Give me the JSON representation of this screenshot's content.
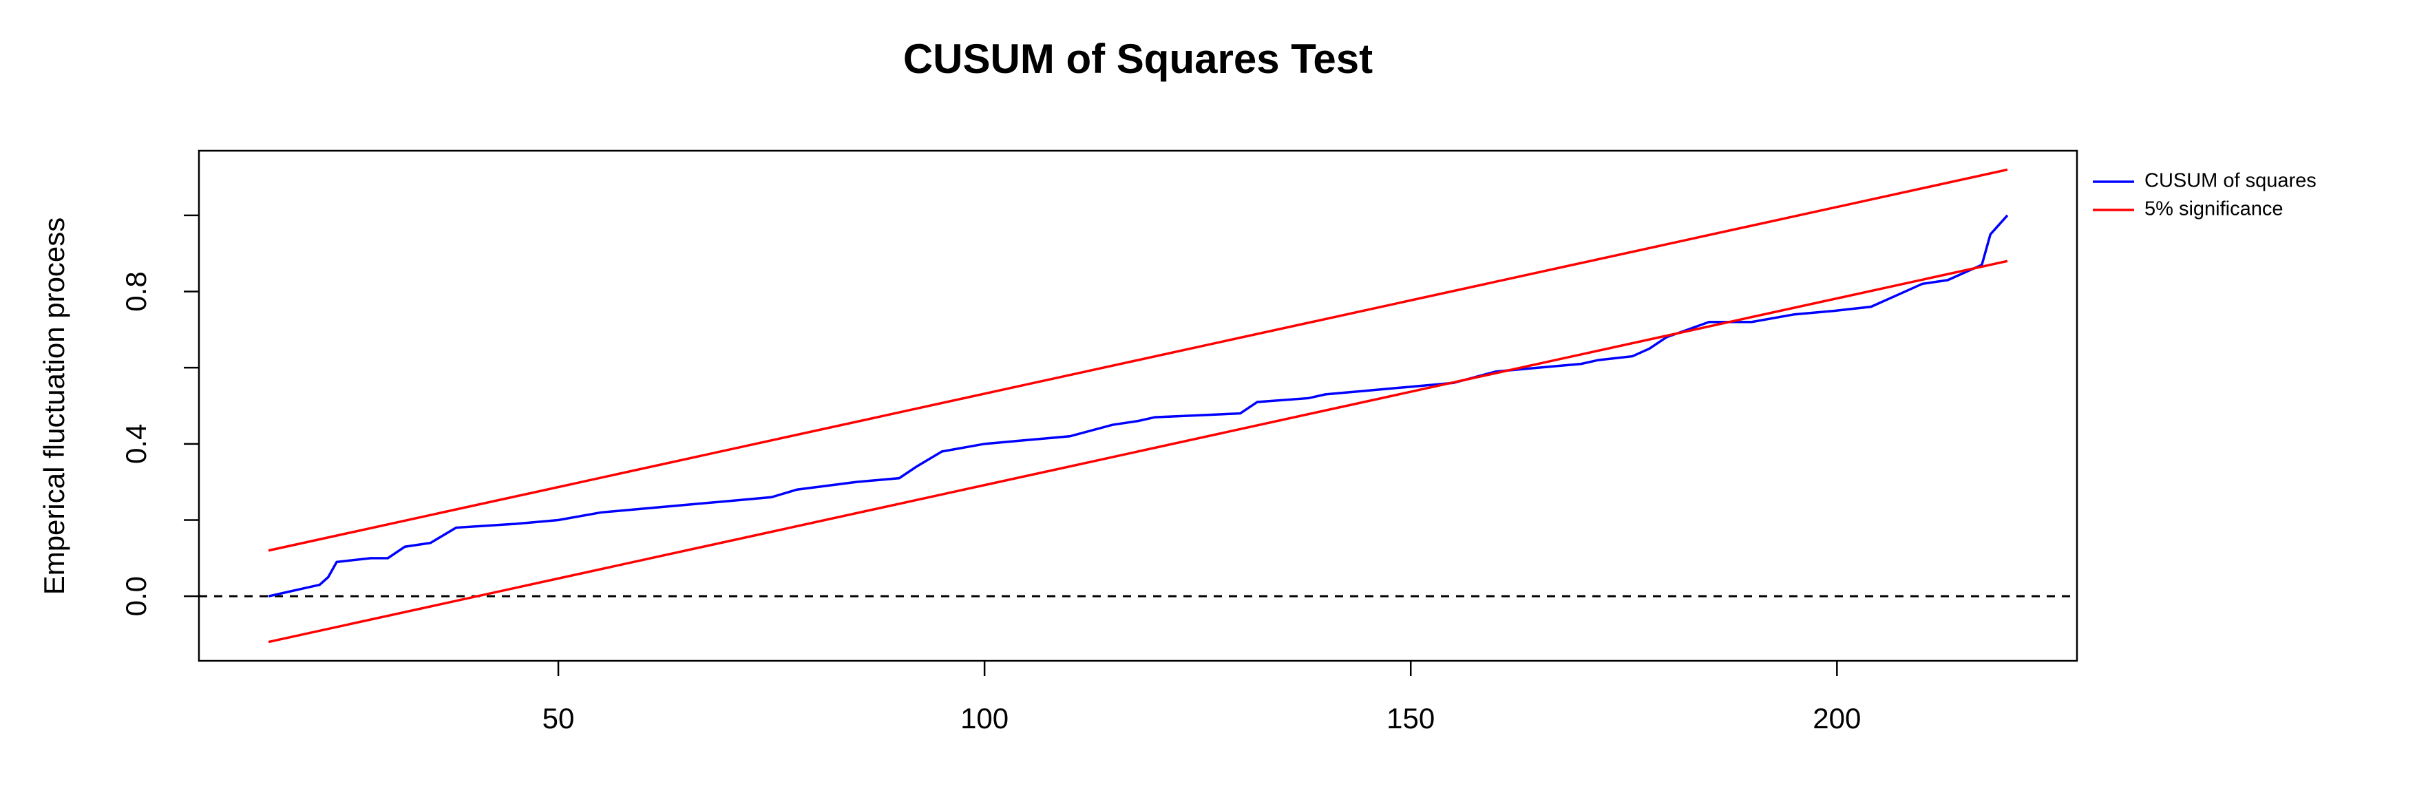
{
  "chart_data": {
    "type": "line",
    "title": "CUSUM of Squares Test",
    "y_label": "Emperical fluctuation process",
    "xlim": [
      7.84,
      228.16
    ],
    "ylim": [
      -0.1696,
      1.1696
    ],
    "xticks": [
      50,
      100,
      150,
      200
    ],
    "yticks": [
      {
        "value": 0,
        "label": "0.0"
      },
      {
        "value": 0.2,
        "label": null
      },
      {
        "value": 0.4,
        "label": "0.4"
      },
      {
        "value": 0.6,
        "label": null
      },
      {
        "value": 0.8,
        "label": "0.8"
      },
      {
        "value": 1.0,
        "label": null
      }
    ],
    "hline": 0,
    "legend": "outside-top-right",
    "series": [
      {
        "name": "CUSUM of squares",
        "color": "#0000ff",
        "x": [
          16,
          18,
          20,
          22,
          23,
          24,
          28,
          30,
          32,
          35,
          38,
          45,
          50,
          55,
          60,
          65,
          70,
          75,
          78,
          85,
          90,
          92,
          95,
          100,
          105,
          110,
          115,
          118,
          120,
          130,
          132,
          138,
          140,
          145,
          150,
          155,
          160,
          165,
          170,
          172,
          176,
          178,
          180,
          185,
          190,
          195,
          200,
          204,
          207,
          210,
          213,
          216,
          217,
          218,
          220
        ],
        "values": [
          0,
          0.01,
          0.02,
          0.03,
          0.05,
          0.09,
          0.1,
          0.1,
          0.13,
          0.14,
          0.18,
          0.19,
          0.2,
          0.22,
          0.23,
          0.24,
          0.25,
          0.26,
          0.28,
          0.3,
          0.31,
          0.34,
          0.38,
          0.4,
          0.41,
          0.42,
          0.45,
          0.46,
          0.47,
          0.48,
          0.51,
          0.52,
          0.53,
          0.54,
          0.55,
          0.56,
          0.59,
          0.6,
          0.61,
          0.62,
          0.63,
          0.65,
          0.68,
          0.72,
          0.72,
          0.74,
          0.75,
          0.76,
          0.79,
          0.82,
          0.83,
          0.86,
          0.87,
          0.95,
          1.0
        ]
      },
      {
        "name": "5% significance",
        "color": "#ff0000",
        "x": [
          16,
          220
        ],
        "upper": [
          0.12,
          1.12
        ],
        "lower": [
          -0.12,
          0.88
        ]
      }
    ]
  }
}
